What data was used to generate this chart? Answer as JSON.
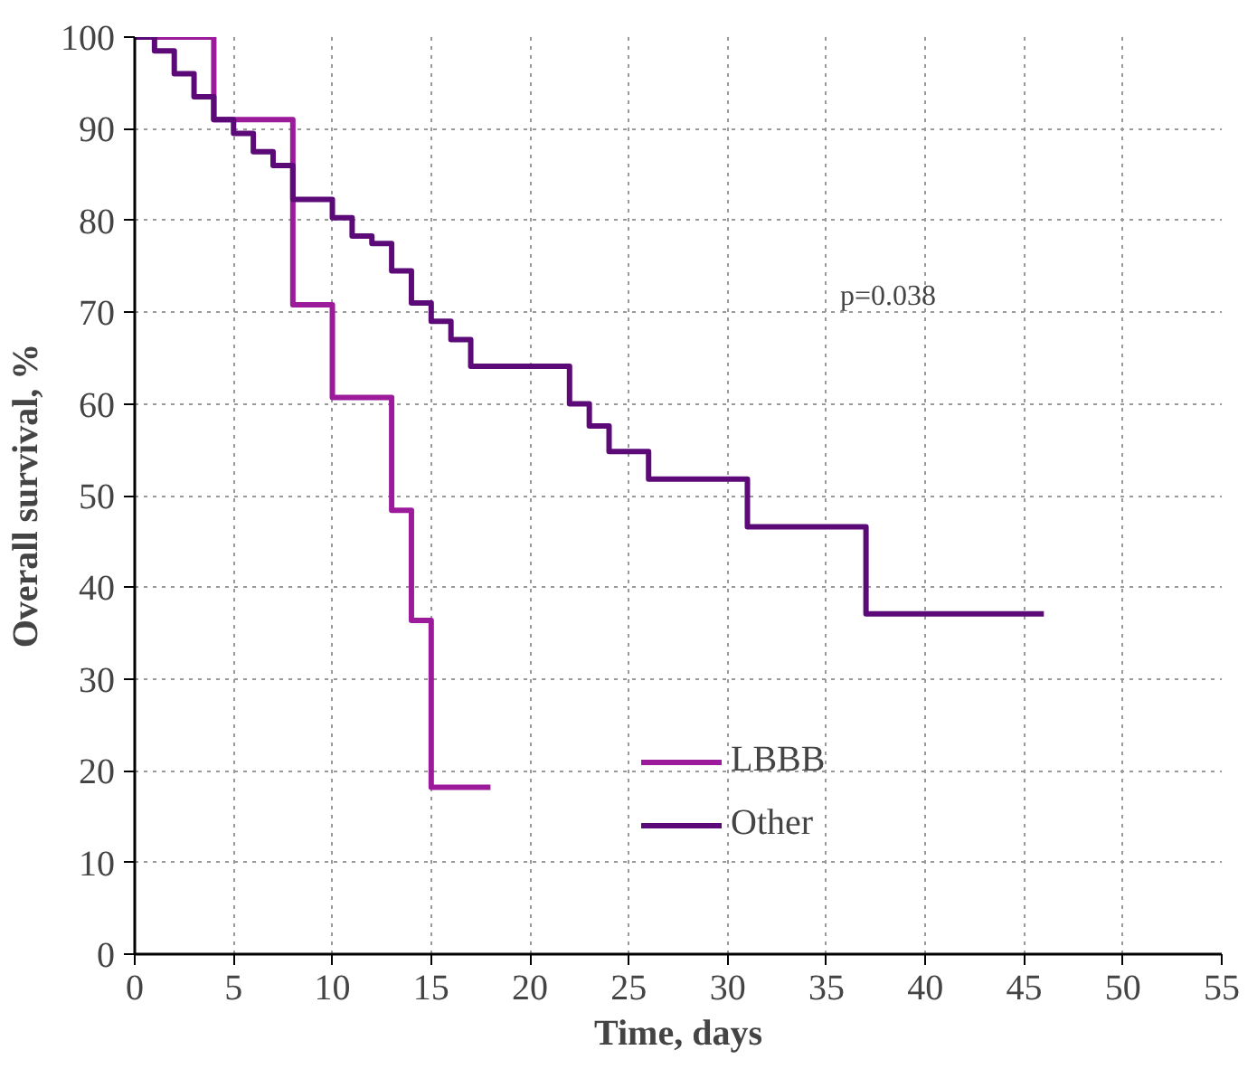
{
  "chart_data": {
    "type": "step",
    "xlabel": "Time, days",
    "ylabel": "Overall survival, %",
    "annotations": [
      "p=0.038"
    ],
    "xlim": [
      0,
      55
    ],
    "xticks": [
      0,
      5,
      10,
      15,
      20,
      25,
      30,
      35,
      40,
      45,
      50,
      55
    ],
    "ylim": [
      0,
      100
    ],
    "yticks": [
      0,
      10,
      20,
      30,
      40,
      50,
      60,
      70,
      80,
      90,
      100
    ],
    "grid": true,
    "legend": "bottom",
    "marker": "none",
    "line_style": "solid",
    "series": [
      {
        "name": "LBBB",
        "color": "#9b1b9b",
        "x": [
          0,
          4,
          8,
          10,
          13,
          14,
          15,
          18
        ],
        "values": [
          100,
          91,
          70.8,
          60.7,
          48.4,
          36.4,
          18.2,
          18.2
        ]
      },
      {
        "name": "Other",
        "color": "#5c0a78",
        "x": [
          0,
          1,
          2,
          3,
          4,
          5,
          6,
          7,
          8,
          10,
          11,
          12,
          13,
          14,
          15,
          16,
          17,
          22,
          23,
          24,
          26,
          31,
          37,
          46
        ],
        "values": [
          100,
          98.5,
          96,
          93.5,
          91,
          89.5,
          87.5,
          86,
          82.3,
          80.3,
          78.3,
          77.5,
          74.5,
          71,
          69,
          67,
          64.1,
          60,
          57.6,
          54.8,
          51.8,
          46.6,
          37.1,
          37.1
        ]
      }
    ]
  }
}
